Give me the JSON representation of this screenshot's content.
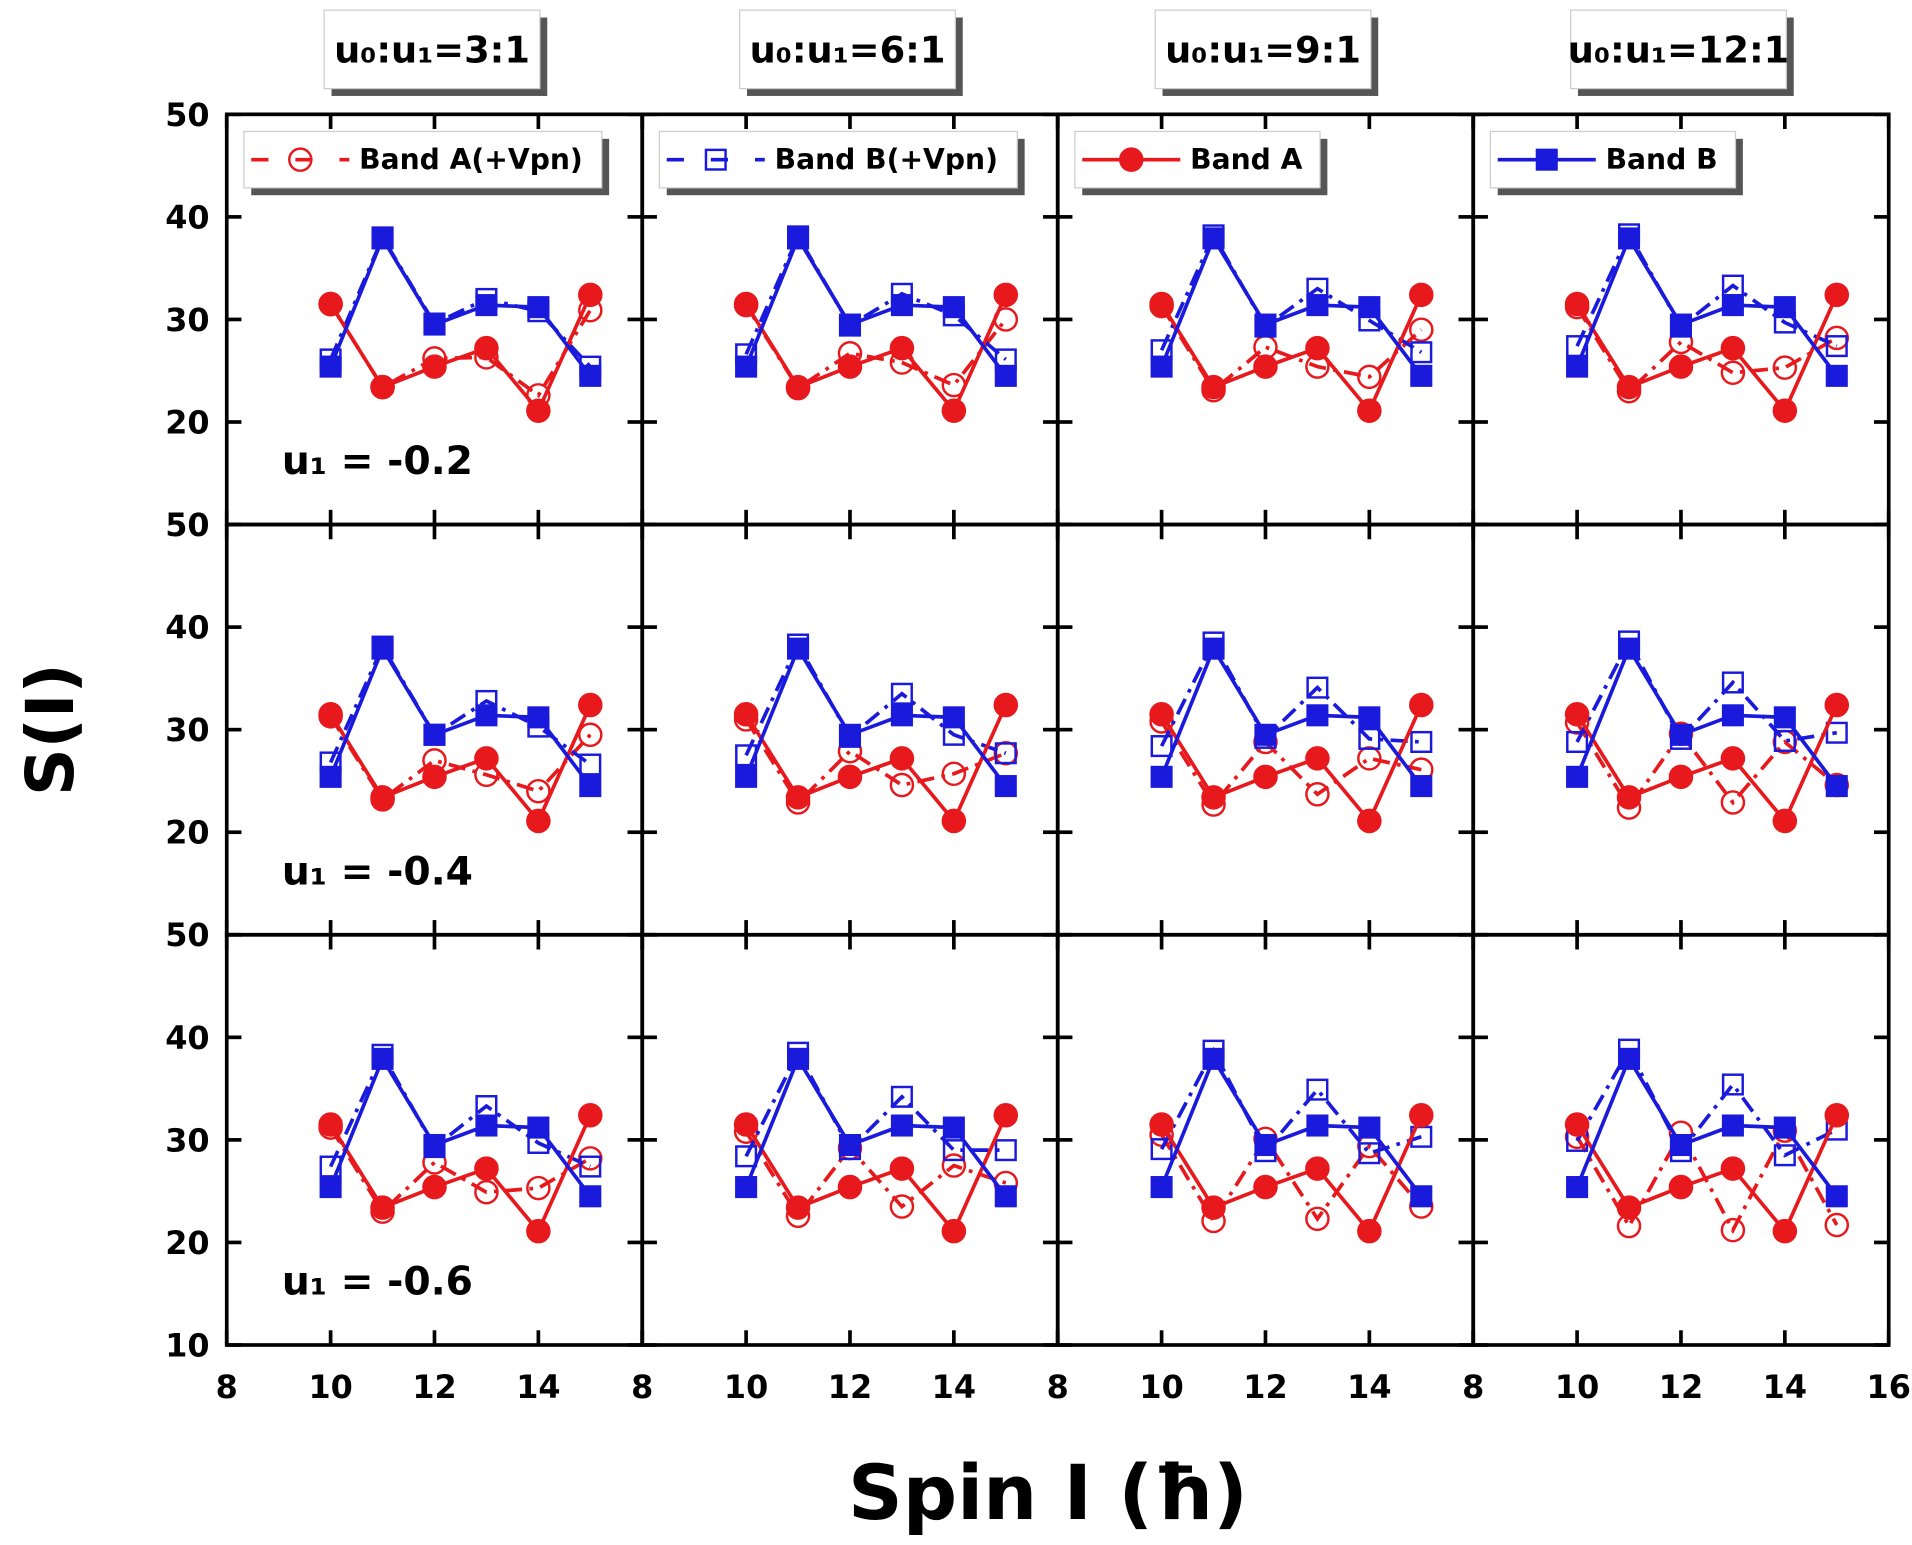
{
  "chart_data": {
    "type": "line",
    "xlabel": "Spin I (ħ)",
    "ylabel": "S(I)",
    "x": [
      10,
      11,
      12,
      13,
      14,
      15
    ],
    "xlim": [
      8,
      16
    ],
    "xticks": [
      8,
      10,
      12,
      14,
      16
    ],
    "ylim": [
      10,
      50
    ],
    "yticks": [
      10,
      20,
      30,
      40,
      50
    ],
    "columns": [
      "u₀:u₁=3:1",
      "u₀:u₁=6:1",
      "u₀:u₁=9:1",
      "u₀:u₁=12:1"
    ],
    "rows": [
      "u₁ = -0.2",
      "u₁ = -0.4",
      "u₁ = -0.6"
    ],
    "series": [
      {
        "name": "Band A(+Vpn)",
        "color": "#e8191c",
        "marker": "circle",
        "filled": false,
        "dashed": true
      },
      {
        "name": "Band B(+Vpn)",
        "color": "#1a1adc",
        "marker": "square",
        "filled": false,
        "dashed": true
      },
      {
        "name": "Band A",
        "color": "#e8191c",
        "marker": "circle",
        "filled": true,
        "dashed": false
      },
      {
        "name": "Band B",
        "color": "#1a1adc",
        "marker": "square",
        "filled": true,
        "dashed": false
      }
    ],
    "panels": [
      {
        "values": [
          [
            31.5,
            23.4,
            26.2,
            26.3,
            22.6,
            30.9
          ],
          [
            26.1,
            38.0,
            29.6,
            32.0,
            30.8,
            25.4
          ],
          [
            31.5,
            23.4,
            25.4,
            27.2,
            21.1,
            32.4
          ],
          [
            25.4,
            37.9,
            29.5,
            31.4,
            31.2,
            24.5
          ]
        ]
      },
      {
        "values": [
          [
            31.4,
            23.3,
            26.7,
            25.8,
            23.6,
            30.0
          ],
          [
            26.6,
            38.1,
            29.4,
            32.5,
            30.4,
            26.1
          ],
          [
            31.5,
            23.4,
            25.4,
            27.2,
            21.1,
            32.4
          ],
          [
            25.4,
            37.9,
            29.5,
            31.4,
            31.2,
            24.5
          ]
        ]
      },
      {
        "values": [
          [
            31.3,
            23.1,
            27.3,
            25.4,
            24.4,
            29.0
          ],
          [
            27.0,
            38.2,
            29.3,
            33.0,
            29.9,
            26.8
          ],
          [
            31.5,
            23.4,
            25.4,
            27.2,
            21.1,
            32.4
          ],
          [
            25.4,
            37.9,
            29.5,
            31.4,
            31.2,
            24.5
          ]
        ]
      },
      {
        "values": [
          [
            31.2,
            23.0,
            27.8,
            24.8,
            25.3,
            28.2
          ],
          [
            27.4,
            38.3,
            29.3,
            33.3,
            29.7,
            27.4
          ],
          [
            31.5,
            23.4,
            25.4,
            27.2,
            21.1,
            32.4
          ],
          [
            25.4,
            37.9,
            29.5,
            31.4,
            31.2,
            24.5
          ]
        ]
      },
      {
        "values": [
          [
            31.3,
            23.2,
            27.0,
            25.6,
            24.0,
            29.5
          ],
          [
            26.8,
            38.1,
            29.5,
            32.8,
            30.3,
            26.6
          ],
          [
            31.5,
            23.4,
            25.4,
            27.2,
            21.1,
            32.4
          ],
          [
            25.4,
            37.9,
            29.5,
            31.4,
            31.2,
            24.5
          ]
        ]
      },
      {
        "values": [
          [
            31.0,
            22.9,
            27.9,
            24.6,
            25.7,
            27.7
          ],
          [
            27.5,
            38.3,
            29.3,
            33.5,
            29.5,
            27.7
          ],
          [
            31.5,
            23.4,
            25.4,
            27.2,
            21.1,
            32.4
          ],
          [
            25.4,
            37.9,
            29.5,
            31.4,
            31.2,
            24.5
          ]
        ]
      },
      {
        "values": [
          [
            30.8,
            22.7,
            28.8,
            23.7,
            27.2,
            26.1
          ],
          [
            28.4,
            38.5,
            29.2,
            34.1,
            29.1,
            28.8
          ],
          [
            31.5,
            23.4,
            25.4,
            27.2,
            21.1,
            32.4
          ],
          [
            25.4,
            37.9,
            29.5,
            31.4,
            31.2,
            24.5
          ]
        ]
      },
      {
        "values": [
          [
            30.7,
            22.4,
            29.6,
            22.9,
            28.8,
            24.6
          ],
          [
            28.8,
            38.6,
            29.1,
            34.6,
            28.9,
            29.7
          ],
          [
            31.5,
            23.4,
            25.4,
            27.2,
            21.1,
            32.4
          ],
          [
            25.4,
            37.9,
            29.5,
            31.4,
            31.2,
            24.5
          ]
        ]
      },
      {
        "values": [
          [
            31.2,
            23.0,
            27.8,
            24.9,
            25.3,
            28.2
          ],
          [
            27.4,
            38.3,
            29.3,
            33.3,
            29.7,
            27.4
          ],
          [
            31.5,
            23.4,
            25.4,
            27.2,
            21.1,
            32.4
          ],
          [
            25.4,
            37.9,
            29.5,
            31.4,
            31.2,
            24.5
          ]
        ]
      },
      {
        "values": [
          [
            30.8,
            22.6,
            29.2,
            23.5,
            27.5,
            25.8
          ],
          [
            28.4,
            38.5,
            29.1,
            34.2,
            29.0,
            29.0
          ],
          [
            31.5,
            23.4,
            25.4,
            27.2,
            21.1,
            32.4
          ],
          [
            25.4,
            37.9,
            29.5,
            31.4,
            31.2,
            24.5
          ]
        ]
      },
      {
        "values": [
          [
            30.5,
            22.1,
            30.1,
            22.3,
            29.4,
            23.5
          ],
          [
            29.1,
            38.7,
            28.9,
            34.9,
            28.7,
            30.3
          ],
          [
            31.5,
            23.4,
            25.4,
            27.2,
            21.1,
            32.4
          ],
          [
            25.4,
            37.9,
            29.5,
            31.4,
            31.2,
            24.5
          ]
        ]
      },
      {
        "values": [
          [
            30.3,
            21.6,
            30.7,
            21.2,
            30.9,
            21.7
          ],
          [
            29.9,
            38.8,
            28.9,
            35.4,
            28.5,
            31.0
          ],
          [
            31.5,
            23.4,
            25.4,
            27.2,
            21.1,
            32.4
          ],
          [
            25.4,
            37.9,
            29.5,
            31.4,
            31.2,
            24.5
          ]
        ]
      }
    ]
  }
}
